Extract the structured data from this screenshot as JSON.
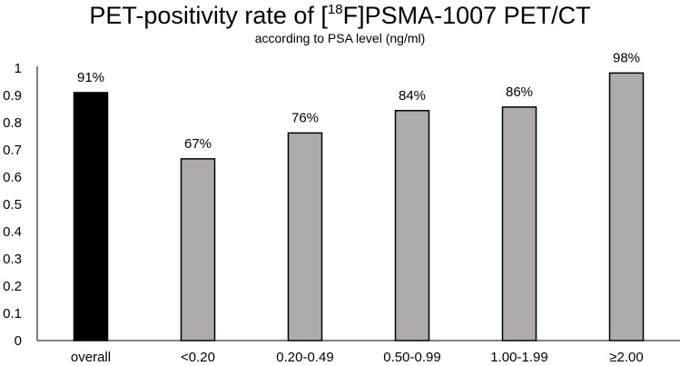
{
  "chart_data": {
    "type": "bar",
    "title_prefix": "PET-positivity rate of [",
    "title_superscript": "18",
    "title_suffix": "F]PSMA-1007 PET/CT",
    "subtitle": "according to PSA level (ng/ml)",
    "categories": [
      "overall",
      "<0.20",
      "0.20-0.49",
      "0.50-0.99",
      "1.00-1.99",
      "≥2.00"
    ],
    "values": [
      0.91,
      0.667,
      0.762,
      0.844,
      0.857,
      0.982
    ],
    "data_labels": [
      "91%",
      "67%",
      "76%",
      "84%",
      "86%",
      "98%"
    ],
    "bar_colors": [
      "#000000",
      "#afabab",
      "#afabab",
      "#afabab",
      "#afabab",
      "#afabab"
    ],
    "bar_outline": "#000000",
    "yticks": [
      "0",
      "0.1",
      "0.2",
      "0.3",
      "0.4",
      "0.5",
      "0.6",
      "0.7",
      "0.8",
      "0.9",
      "1"
    ],
    "ylim": [
      0,
      1
    ],
    "xlabel": "",
    "ylabel": "",
    "grid": false
  }
}
